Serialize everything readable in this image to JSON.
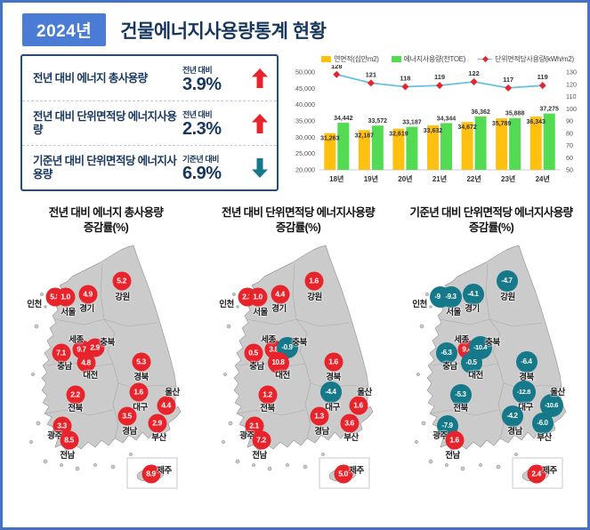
{
  "header": {
    "year_badge": "2024년",
    "title": "건물에너지사용량통계 현황"
  },
  "colors": {
    "up": "#E7242B",
    "down": "#15798A",
    "accent": "#4472C4",
    "navy": "#17375E",
    "bar_orange": "#FFC010",
    "bar_green": "#53DB53",
    "line_blue": "#67BFE3"
  },
  "summary_panel": {
    "items": [
      {
        "label": "전년 대비 에너지 총사용량",
        "compare_label": "전년 대비",
        "value": "3.9%",
        "direction": "up"
      },
      {
        "label": "전년 대비 단위면적당 에너지사용량",
        "compare_label": "전년 대비",
        "value": "2.3%",
        "direction": "up"
      },
      {
        "label": "기준년 대비 단위면적당 에너지사용량",
        "compare_label": "기준년 대비",
        "value": "6.9%",
        "direction": "down"
      }
    ]
  },
  "chart_data": {
    "type": "combo-bar-line",
    "categories": [
      "18년",
      "19년",
      "20년",
      "21년",
      "22년",
      "23년",
      "24년"
    ],
    "series": [
      {
        "name": "연면적(십만m2)",
        "type": "bar",
        "color": "#FFC010",
        "values": [
          31263,
          32187,
          32619,
          33632,
          34672,
          35789,
          36343
        ]
      },
      {
        "name": "에너지사용량(천TOE)",
        "type": "bar",
        "color": "#53DB53",
        "values": [
          34442,
          33572,
          33187,
          34344,
          36362,
          35888,
          37275
        ]
      },
      {
        "name": "단위면적당사용량(kWh/m2)",
        "type": "line",
        "color": "#67BFE3",
        "marker_color": "#E7242B",
        "values": [
          128,
          121,
          118,
          119,
          122,
          117,
          119
        ]
      }
    ],
    "left_axis": {
      "min": 20000,
      "max": 50000,
      "step": 5000
    },
    "right_axis": {
      "min": 50,
      "max": 130,
      "step": 10
    },
    "grid": false,
    "legend_position": "top"
  },
  "maps": [
    {
      "title": "전년 대비 에너지 총사용량",
      "subtitle": "증감률(%)",
      "regions": [
        {
          "name": "인천",
          "value": "5.8"
        },
        {
          "name": "서울",
          "value": "1.0"
        },
        {
          "name": "경기",
          "value": "4.9"
        },
        {
          "name": "강원",
          "value": "5.2"
        },
        {
          "name": "세종",
          "value": "9.7"
        },
        {
          "name": "충북",
          "value": "2.9"
        },
        {
          "name": "충남",
          "value": "7.1"
        },
        {
          "name": "대전",
          "value": "4.8"
        },
        {
          "name": "경북",
          "value": "5.3"
        },
        {
          "name": "전북",
          "value": "2.2"
        },
        {
          "name": "대구",
          "value": "1.6"
        },
        {
          "name": "울산",
          "value": "4.4"
        },
        {
          "name": "경남",
          "value": "3.5"
        },
        {
          "name": "부산",
          "value": "2.9"
        },
        {
          "name": "광주",
          "value": "3.3"
        },
        {
          "name": "전남",
          "value": "8.5"
        },
        {
          "name": "제주",
          "value": "8.9"
        }
      ]
    },
    {
      "title": "전년 대비 단위면적당 에너지사용량",
      "subtitle": "증감률(%)",
      "regions": [
        {
          "name": "인천",
          "value": "2.3"
        },
        {
          "name": "서울",
          "value": "1.0"
        },
        {
          "name": "경기",
          "value": "4.4"
        },
        {
          "name": "강원",
          "value": "1.6"
        },
        {
          "name": "세종",
          "value": "3.8"
        },
        {
          "name": "충북",
          "value": "-0.9"
        },
        {
          "name": "충남",
          "value": "0.5"
        },
        {
          "name": "대전",
          "value": "10.8"
        },
        {
          "name": "경북",
          "value": "1.6"
        },
        {
          "name": "전북",
          "value": "1.2"
        },
        {
          "name": "대구",
          "value": "-4.4"
        },
        {
          "name": "울산",
          "value": "1.6"
        },
        {
          "name": "경남",
          "value": "1.3"
        },
        {
          "name": "부산",
          "value": "3.6"
        },
        {
          "name": "광주",
          "value": "2.1"
        },
        {
          "name": "전남",
          "value": "7.2"
        },
        {
          "name": "제주",
          "value": "5.0"
        }
      ]
    },
    {
      "title": "기준년 대비 단위면적당 에너지사용량",
      "subtitle": "증감률(%)",
      "regions": [
        {
          "name": "인천",
          "value": "-9.9"
        },
        {
          "name": "서울",
          "value": "-9.3"
        },
        {
          "name": "경기",
          "value": "-4.1"
        },
        {
          "name": "강원",
          "value": "-4.7"
        },
        {
          "name": "세종",
          "value": "9.4"
        },
        {
          "name": "충북",
          "value": "-10.4"
        },
        {
          "name": "충남",
          "value": "-6.3"
        },
        {
          "name": "대전",
          "value": "-0.5"
        },
        {
          "name": "경북",
          "value": "-6.4"
        },
        {
          "name": "전북",
          "value": "-5.3"
        },
        {
          "name": "대구",
          "value": "-12.8"
        },
        {
          "name": "울산",
          "value": "-10.6"
        },
        {
          "name": "경남",
          "value": "-4.2"
        },
        {
          "name": "부산",
          "value": "-6.0"
        },
        {
          "name": "광주",
          "value": "-7.9"
        },
        {
          "name": "전남",
          "value": "1.6"
        },
        {
          "name": "제주",
          "value": "2.4"
        }
      ]
    }
  ]
}
